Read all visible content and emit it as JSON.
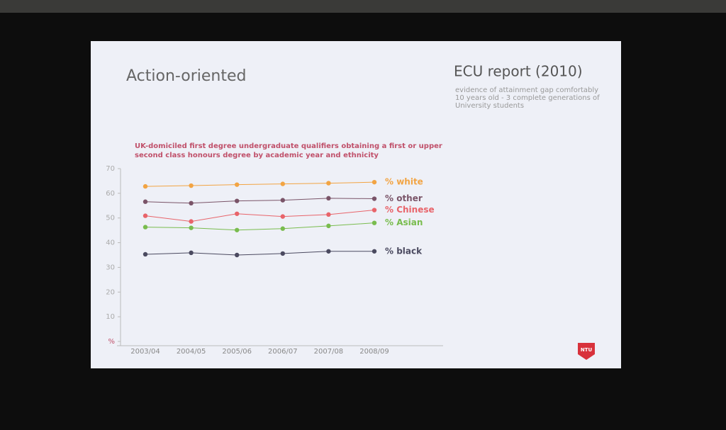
{
  "slide": {
    "title": "Action-oriented",
    "report_title": "ECU report (2010)",
    "notes": "evidence of attainment gap comfortably 10 years old - 3 complete generations of University students",
    "logo": "NTU"
  },
  "chart_data": {
    "type": "line",
    "title": "UK-domiciled first degree undergraduate qualifiers obtaining a first or upper second class honours degree by academic year and ethnicity",
    "categories": [
      "2003/04",
      "2004/05",
      "2005/06",
      "2006/07",
      "2007/08",
      "2008/09"
    ],
    "series": [
      {
        "name": "% white",
        "color": "#f2a443",
        "values": [
          62.8,
          63.1,
          63.5,
          63.8,
          64.1,
          64.5
        ]
      },
      {
        "name": "% other",
        "color": "#7a5468",
        "values": [
          56.6,
          56.0,
          56.9,
          57.2,
          58.0,
          57.8
        ]
      },
      {
        "name": "% Chinese",
        "color": "#e8646a",
        "values": [
          50.9,
          48.6,
          51.7,
          50.6,
          51.4,
          53.2
        ]
      },
      {
        "name": "% Asian",
        "color": "#79bc4e",
        "values": [
          46.3,
          46.0,
          45.1,
          45.7,
          46.8,
          48.0
        ]
      },
      {
        "name": "% black",
        "color": "#4b4a60",
        "values": [
          35.3,
          35.9,
          35.0,
          35.6,
          36.5,
          36.5
        ]
      }
    ],
    "ylim": [
      0,
      70
    ],
    "yticks": [
      {
        "value": 0,
        "label": "%"
      },
      10,
      20,
      30,
      40,
      50,
      60,
      70
    ],
    "grid": false
  }
}
